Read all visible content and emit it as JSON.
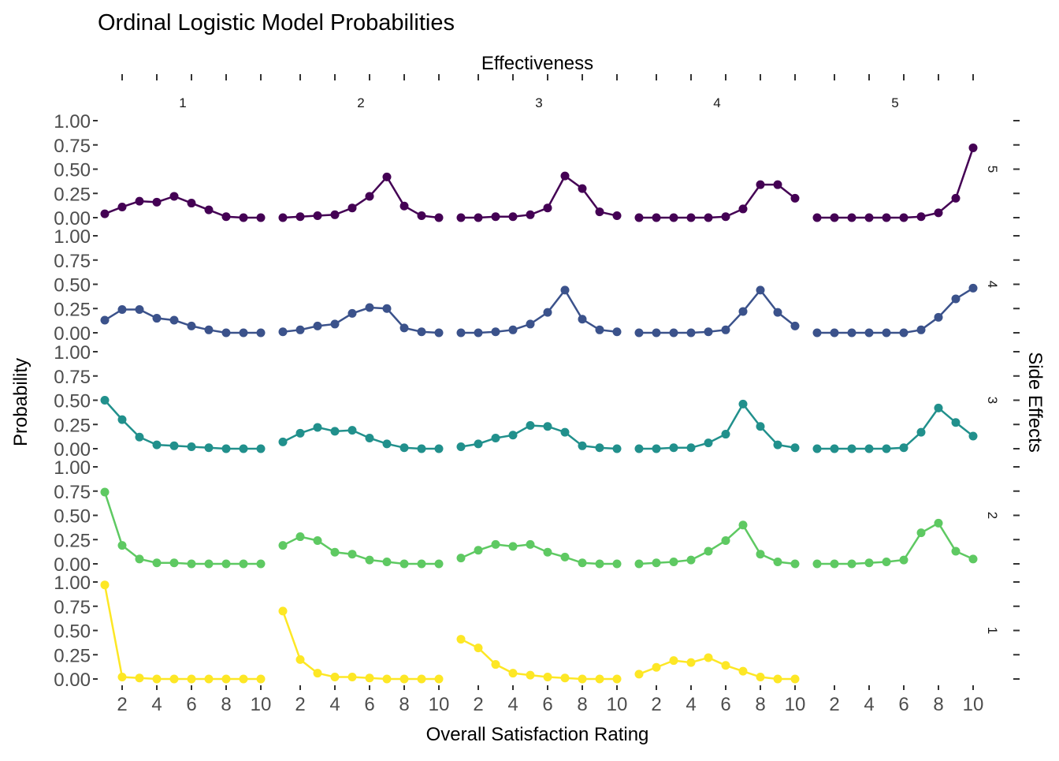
{
  "chart_data": {
    "type": "line",
    "title": "Ordinal Logistic Model Probabilities",
    "xlabel": "Overall Satisfaction Rating",
    "ylabel": "Probability",
    "column_facet": {
      "label": "Effectiveness",
      "levels": [
        "1",
        "2",
        "3",
        "4",
        "5"
      ]
    },
    "row_facet": {
      "label": "Side Effects",
      "levels": [
        "5",
        "4",
        "3",
        "2",
        "1"
      ]
    },
    "x": [
      1,
      2,
      3,
      4,
      5,
      6,
      7,
      8,
      9,
      10
    ],
    "x_ticks": [
      2,
      4,
      6,
      8,
      10
    ],
    "x_tick_labels": [
      "2",
      "4",
      "6",
      "8",
      "10"
    ],
    "xlim": [
      1,
      10
    ],
    "ylim": [
      0,
      1
    ],
    "y_ticks": [
      0,
      0.25,
      0.5,
      0.75,
      1
    ],
    "y_tick_labels": [
      "0.00",
      "0.25",
      "0.50",
      "0.75",
      "1.00"
    ],
    "grid": false,
    "legend": "none",
    "row_colors": {
      "5": "#440154",
      "4": "#3b528b",
      "3": "#21908c",
      "2": "#5ec962",
      "1": "#fde725"
    },
    "panels": [
      {
        "side_effects": "5",
        "effectiveness": "1",
        "values": [
          0.04,
          0.11,
          0.17,
          0.16,
          0.22,
          0.15,
          0.08,
          0.01,
          0.0,
          0.0
        ]
      },
      {
        "side_effects": "5",
        "effectiveness": "2",
        "values": [
          0.0,
          0.01,
          0.02,
          0.03,
          0.1,
          0.22,
          0.42,
          0.12,
          0.02,
          0.0
        ]
      },
      {
        "side_effects": "5",
        "effectiveness": "3",
        "values": [
          0.0,
          0.0,
          0.01,
          0.01,
          0.03,
          0.1,
          0.43,
          0.3,
          0.06,
          0.02
        ]
      },
      {
        "side_effects": "5",
        "effectiveness": "4",
        "values": [
          0.0,
          0.0,
          0.0,
          0.0,
          0.0,
          0.01,
          0.09,
          0.34,
          0.34,
          0.2
        ]
      },
      {
        "side_effects": "5",
        "effectiveness": "5",
        "values": [
          0.0,
          0.0,
          0.0,
          0.0,
          0.0,
          0.0,
          0.01,
          0.05,
          0.2,
          0.72
        ]
      },
      {
        "side_effects": "4",
        "effectiveness": "1",
        "values": [
          0.13,
          0.24,
          0.24,
          0.15,
          0.13,
          0.07,
          0.03,
          0.0,
          0.0,
          0.0
        ]
      },
      {
        "side_effects": "4",
        "effectiveness": "2",
        "values": [
          0.01,
          0.03,
          0.07,
          0.09,
          0.2,
          0.26,
          0.25,
          0.05,
          0.01,
          0.0
        ]
      },
      {
        "side_effects": "4",
        "effectiveness": "3",
        "values": [
          0.0,
          0.0,
          0.01,
          0.03,
          0.09,
          0.21,
          0.44,
          0.14,
          0.03,
          0.01
        ]
      },
      {
        "side_effects": "4",
        "effectiveness": "4",
        "values": [
          0.0,
          0.0,
          0.0,
          0.0,
          0.01,
          0.03,
          0.22,
          0.44,
          0.21,
          0.07
        ]
      },
      {
        "side_effects": "4",
        "effectiveness": "5",
        "values": [
          0.0,
          0.0,
          0.0,
          0.0,
          0.0,
          0.0,
          0.03,
          0.16,
          0.35,
          0.46
        ]
      },
      {
        "side_effects": "3",
        "effectiveness": "1",
        "values": [
          0.5,
          0.3,
          0.12,
          0.04,
          0.03,
          0.02,
          0.01,
          0.0,
          0.0,
          0.0
        ]
      },
      {
        "side_effects": "3",
        "effectiveness": "2",
        "values": [
          0.07,
          0.16,
          0.22,
          0.18,
          0.19,
          0.11,
          0.05,
          0.01,
          0.0,
          0.0
        ]
      },
      {
        "side_effects": "3",
        "effectiveness": "3",
        "values": [
          0.02,
          0.05,
          0.11,
          0.14,
          0.24,
          0.23,
          0.17,
          0.03,
          0.01,
          0.0
        ]
      },
      {
        "side_effects": "3",
        "effectiveness": "4",
        "values": [
          0.0,
          0.0,
          0.01,
          0.01,
          0.06,
          0.15,
          0.46,
          0.23,
          0.04,
          0.01
        ]
      },
      {
        "side_effects": "3",
        "effectiveness": "5",
        "values": [
          0.0,
          0.0,
          0.0,
          0.0,
          0.0,
          0.01,
          0.17,
          0.42,
          0.27,
          0.13
        ]
      },
      {
        "side_effects": "2",
        "effectiveness": "1",
        "values": [
          0.74,
          0.19,
          0.05,
          0.01,
          0.01,
          0.0,
          0.0,
          0.0,
          0.0,
          0.0
        ]
      },
      {
        "side_effects": "2",
        "effectiveness": "2",
        "values": [
          0.19,
          0.28,
          0.24,
          0.12,
          0.1,
          0.04,
          0.02,
          0.0,
          0.0,
          0.0
        ]
      },
      {
        "side_effects": "2",
        "effectiveness": "3",
        "values": [
          0.06,
          0.14,
          0.2,
          0.18,
          0.2,
          0.12,
          0.07,
          0.01,
          0.0,
          0.0
        ]
      },
      {
        "side_effects": "2",
        "effectiveness": "4",
        "values": [
          0.0,
          0.01,
          0.02,
          0.04,
          0.13,
          0.24,
          0.4,
          0.1,
          0.02,
          0.0
        ]
      },
      {
        "side_effects": "2",
        "effectiveness": "5",
        "values": [
          0.0,
          0.0,
          0.0,
          0.01,
          0.02,
          0.04,
          0.32,
          0.42,
          0.13,
          0.05
        ]
      },
      {
        "side_effects": "1",
        "effectiveness": "1",
        "values": [
          0.97,
          0.02,
          0.01,
          0.0,
          0.0,
          0.0,
          0.0,
          0.0,
          0.0,
          0.0
        ]
      },
      {
        "side_effects": "1",
        "effectiveness": "2",
        "values": [
          0.7,
          0.2,
          0.06,
          0.02,
          0.02,
          0.01,
          0.0,
          0.0,
          0.0,
          0.0
        ]
      },
      {
        "side_effects": "1",
        "effectiveness": "3",
        "values": [
          0.41,
          0.32,
          0.15,
          0.06,
          0.04,
          0.02,
          0.01,
          0.0,
          0.0,
          0.0
        ]
      },
      {
        "side_effects": "1",
        "effectiveness": "4",
        "values": [
          0.05,
          0.12,
          0.19,
          0.17,
          0.22,
          0.14,
          0.08,
          0.02,
          0.0,
          0.0
        ]
      },
      {
        "side_effects": "1",
        "effectiveness": "5",
        "values": [
          null,
          null,
          null,
          null,
          null,
          null,
          null,
          null,
          null,
          null
        ]
      }
    ]
  }
}
